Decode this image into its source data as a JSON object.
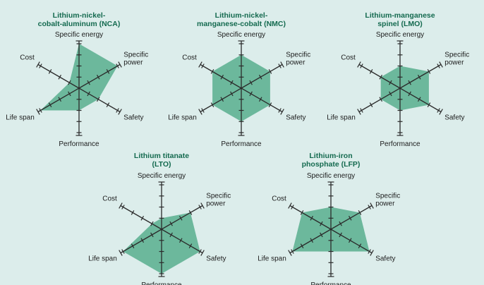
{
  "colors": {
    "background": "#dcedeb",
    "fill": "#6cb89c",
    "title": "#146a4f",
    "axis": "#2b2b2b"
  },
  "chart_data": [
    {
      "type": "radar",
      "title_lines": [
        "Lithium-nickel-",
        "cobalt-aluminum (NCA)"
      ],
      "axes": [
        "Specific energy",
        "Specific power",
        "Safety",
        "Performance",
        "Life span",
        "Cost"
      ],
      "axis_label_lines": [
        [
          "Specific energy"
        ],
        [
          "Specific",
          "power"
        ],
        [
          "Safety"
        ],
        [
          "Performance"
        ],
        [
          "Life span"
        ],
        [
          "Cost"
        ]
      ],
      "scale_max": 4,
      "values": [
        4,
        4,
        2,
        2,
        4,
        1
      ]
    },
    {
      "type": "radar",
      "title_lines": [
        "Lithium-nickel-",
        "manganese-cobalt (NMC)"
      ],
      "axes": [
        "Specific energy",
        "Specific power",
        "Safety",
        "Performance",
        "Life span",
        "Cost"
      ],
      "axis_label_lines": [
        [
          "Specific energy"
        ],
        [
          "Specific",
          "power"
        ],
        [
          "Safety"
        ],
        [
          "Performance"
        ],
        [
          "Life span"
        ],
        [
          "Cost"
        ]
      ],
      "scale_max": 4,
      "values": [
        3,
        3,
        3,
        3,
        3,
        3
      ]
    },
    {
      "type": "radar",
      "title_lines": [
        "Lithium-manganese",
        "spinel (LMO)"
      ],
      "axes": [
        "Specific energy",
        "Specific power",
        "Safety",
        "Performance",
        "Life span",
        "Cost"
      ],
      "axis_label_lines": [
        [
          "Specific energy"
        ],
        [
          "Specific",
          "power"
        ],
        [
          "Safety"
        ],
        [
          "Performance"
        ],
        [
          "Life span"
        ],
        [
          "Cost"
        ]
      ],
      "scale_max": 4,
      "values": [
        2,
        3,
        3,
        2,
        2,
        2
      ]
    },
    {
      "type": "radar",
      "title_lines": [
        "Lithium titanate",
        "(LTO)"
      ],
      "axes": [
        "Specific energy",
        "Specific power",
        "Safety",
        "Performance",
        "Life span",
        "Cost"
      ],
      "axis_label_lines": [
        [
          "Specific energy"
        ],
        [
          "Specific",
          "power"
        ],
        [
          "Safety"
        ],
        [
          "Performance"
        ],
        [
          "Life span"
        ],
        [
          "Cost"
        ]
      ],
      "scale_max": 4,
      "values": [
        1,
        3,
        4,
        4,
        4,
        1
      ]
    },
    {
      "type": "radar",
      "title_lines": [
        "Lithium-iron",
        "phosphate (LFP)"
      ],
      "axes": [
        "Specific energy",
        "Specific power",
        "Safety",
        "Performance",
        "Life span",
        "Cost"
      ],
      "axis_label_lines": [
        [
          "Specific energy"
        ],
        [
          "Specific",
          "power"
        ],
        [
          "Safety"
        ],
        [
          "Performance"
        ],
        [
          "Life span"
        ],
        [
          "Cost"
        ]
      ],
      "scale_max": 4,
      "values": [
        2,
        3,
        4,
        2,
        4,
        3
      ]
    }
  ]
}
